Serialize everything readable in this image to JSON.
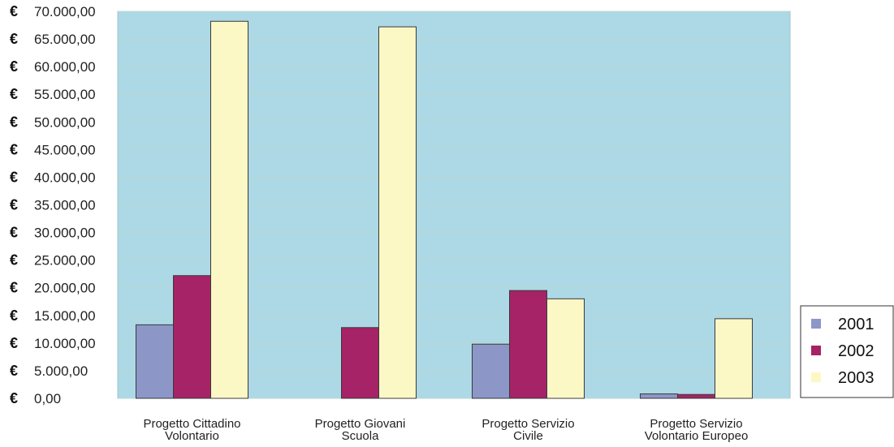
{
  "chart_data": {
    "type": "bar",
    "currency_symbol": "€",
    "categories": [
      [
        "Progetto Cittadino",
        "Volontario"
      ],
      [
        "Progetto Giovani",
        "Scuola"
      ],
      [
        "Progetto Servizio",
        "Civile"
      ],
      [
        "Progetto Servizio",
        "Volontario Europeo"
      ]
    ],
    "series": [
      {
        "name": "2001",
        "color": "#8c97c8",
        "values": [
          13300,
          0,
          9800,
          800
        ]
      },
      {
        "name": "2002",
        "color": "#a52366",
        "values": [
          22200,
          12800,
          19500,
          700
        ]
      },
      {
        "name": "2003",
        "color": "#fcf8c6",
        "values": [
          68200,
          67200,
          18000,
          14400
        ]
      }
    ],
    "ylim": [
      0,
      70000
    ],
    "yticks": [
      "0,00",
      "5.000,00",
      "10.000,00",
      "15.000,00",
      "20.000,00",
      "25.000,00",
      "30.000,00",
      "35.000,00",
      "40.000,00",
      "45.000,00",
      "50.000,00",
      "55.000,00",
      "60.000,00",
      "65.000,00",
      "70.000,00"
    ],
    "grid": true,
    "legend_position": "bottom-right",
    "plot_background": "#add8e6"
  }
}
